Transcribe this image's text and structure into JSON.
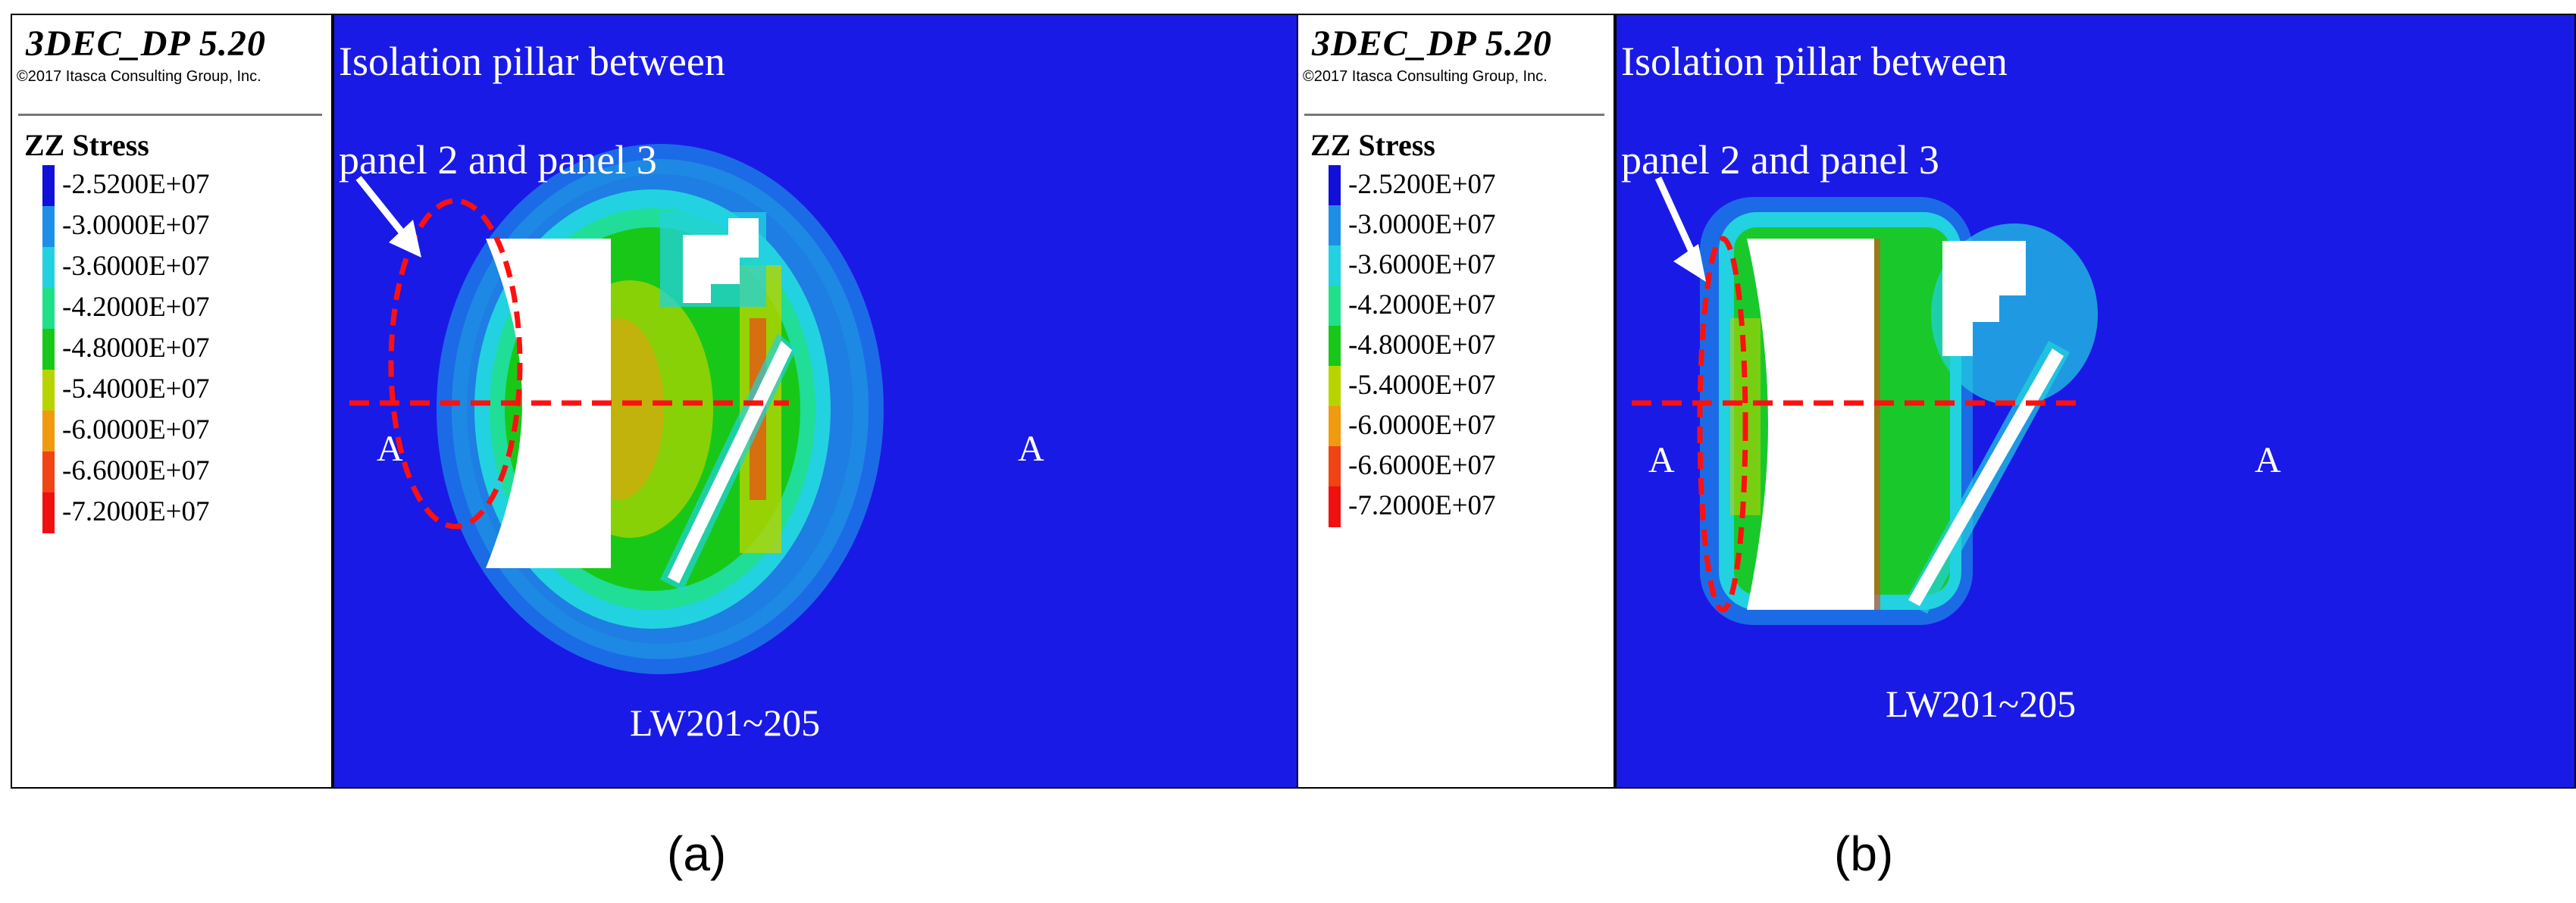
{
  "legend": {
    "software": "3DEC_DP 5.20",
    "copyright": "©2017 Itasca Consulting Group, Inc.",
    "quantity": "ZZ Stress",
    "levels": [
      {
        "label": "-2.5200E+07",
        "color": "#1010d8"
      },
      {
        "label": "-3.0000E+07",
        "color": "#1e8fe6"
      },
      {
        "label": "-3.6000E+07",
        "color": "#22d2e0"
      },
      {
        "label": "-4.2000E+07",
        "color": "#20e08a"
      },
      {
        "label": "-4.8000E+07",
        "color": "#18c818"
      },
      {
        "label": "-5.4000E+07",
        "color": "#b8d400"
      },
      {
        "label": "-6.0000E+07",
        "color": "#f09a10"
      },
      {
        "label": "-6.6000E+07",
        "color": "#f04414"
      },
      {
        "label": "-7.2000E+07",
        "color": "#f01010"
      }
    ]
  },
  "panels": [
    {
      "id": "a",
      "caption": "(a)",
      "annotation_line1": "Isolation pillar between",
      "annotation_line2": "panel 2 and panel 3",
      "section_left": "A",
      "section_right": "A",
      "panel_label": "LW201~205"
    },
    {
      "id": "b",
      "caption": "(b)",
      "annotation_line1": "Isolation pillar between",
      "annotation_line2": "panel 2 and panel 3",
      "section_left": "A",
      "section_right": "A",
      "panel_label": "LW201~205"
    }
  ]
}
